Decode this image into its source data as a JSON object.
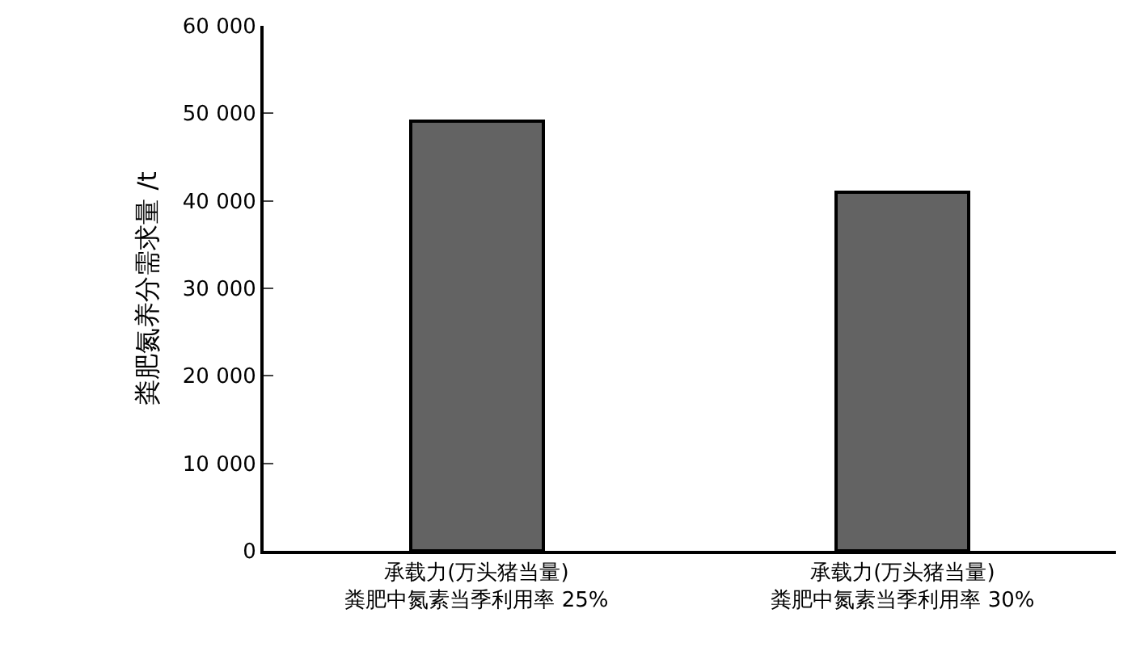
{
  "chart_data": {
    "type": "bar",
    "ylabel": "粪肥氮养分需求量 /t",
    "categories": [
      "承载力(万头猪当量)\n粪肥中氮素当季利用率 25%",
      "承载力(万头猪当量)\n粪肥中氮素当季利用率 30%"
    ],
    "values": [
      49100,
      40900
    ],
    "color": "#636363",
    "ylim": [
      0,
      60000
    ],
    "yticks": [
      {
        "value": 0,
        "label": "0"
      },
      {
        "value": 10000,
        "label": "10 000"
      },
      {
        "value": 20000,
        "label": "20 000"
      },
      {
        "value": 30000,
        "label": "30 000"
      },
      {
        "value": 40000,
        "label": "40 000"
      },
      {
        "value": 50000,
        "label": "50 000"
      },
      {
        "value": 60000,
        "label": "60 000"
      }
    ]
  }
}
